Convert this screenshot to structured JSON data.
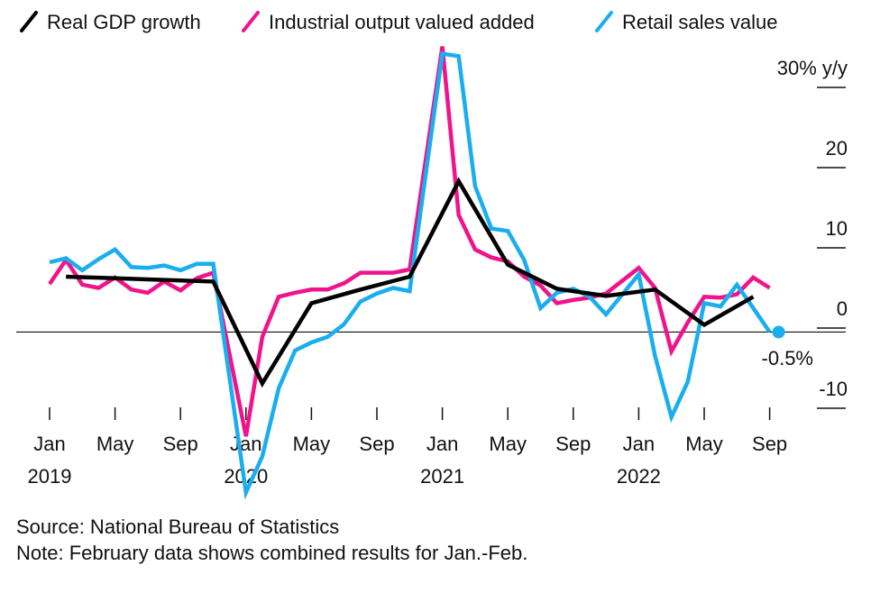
{
  "chart_data": {
    "type": "line",
    "x_axis": {
      "ticks": [
        {
          "label": "Jan",
          "year": "2019",
          "x": "2019-01"
        },
        {
          "label": "May",
          "x": "2019-05"
        },
        {
          "label": "Sep",
          "x": "2019-09"
        },
        {
          "label": "Jan",
          "year": "2020",
          "x": "2020-01"
        },
        {
          "label": "May",
          "x": "2020-05"
        },
        {
          "label": "Sep",
          "x": "2020-09"
        },
        {
          "label": "Jan",
          "year": "2021",
          "x": "2021-01"
        },
        {
          "label": "May",
          "x": "2021-05"
        },
        {
          "label": "Sep",
          "x": "2021-09"
        },
        {
          "label": "Jan",
          "year": "2022",
          "x": "2022-01"
        },
        {
          "label": "May",
          "x": "2022-05"
        },
        {
          "label": "Sep",
          "x": "2022-09"
        }
      ]
    },
    "y_axis": {
      "ylim": [
        -10,
        30
      ],
      "ticks": [
        {
          "value": 30,
          "label": "30% y/y"
        },
        {
          "value": 20,
          "label": "20"
        },
        {
          "value": 10,
          "label": "10"
        },
        {
          "value": 0,
          "label": "0"
        },
        {
          "value": -10,
          "label": "-10"
        }
      ]
    },
    "baseline": -0.5,
    "series": [
      {
        "name": "Real GDP growth",
        "color": "#000000",
        "points": [
          {
            "x": "2019-02",
            "y": 6.4
          },
          {
            "x": "2019-05",
            "y": 6.2
          },
          {
            "x": "2019-08",
            "y": 6.0
          },
          {
            "x": "2019-11",
            "y": 5.8
          },
          {
            "x": "2020-02",
            "y": -6.9
          },
          {
            "x": "2020-05",
            "y": 3.1
          },
          {
            "x": "2020-08",
            "y": 4.8
          },
          {
            "x": "2020-11",
            "y": 6.4
          },
          {
            "x": "2021-02",
            "y": 18.3
          },
          {
            "x": "2021-05",
            "y": 7.9
          },
          {
            "x": "2021-08",
            "y": 4.9
          },
          {
            "x": "2021-11",
            "y": 4.0
          },
          {
            "x": "2022-02",
            "y": 4.8
          },
          {
            "x": "2022-05",
            "y": 0.4
          },
          {
            "x": "2022-08",
            "y": 3.9
          }
        ]
      },
      {
        "name": "Industrial output valued added",
        "color": "#f0138c",
        "points": [
          {
            "x": "2019-01",
            "y": 5.5
          },
          {
            "x": "2019-02",
            "y": 8.5
          },
          {
            "x": "2019-03",
            "y": 5.4
          },
          {
            "x": "2019-04",
            "y": 5.0
          },
          {
            "x": "2019-05",
            "y": 6.3
          },
          {
            "x": "2019-06",
            "y": 4.8
          },
          {
            "x": "2019-07",
            "y": 4.4
          },
          {
            "x": "2019-08",
            "y": 5.8
          },
          {
            "x": "2019-09",
            "y": 4.7
          },
          {
            "x": "2019-10",
            "y": 6.2
          },
          {
            "x": "2019-11",
            "y": 6.9
          },
          {
            "x": "2020-01",
            "y": -13.5
          },
          {
            "x": "2020-02",
            "y": -1.1
          },
          {
            "x": "2020-03",
            "y": 3.9
          },
          {
            "x": "2020-04",
            "y": 4.4
          },
          {
            "x": "2020-05",
            "y": 4.8
          },
          {
            "x": "2020-06",
            "y": 4.8
          },
          {
            "x": "2020-07",
            "y": 5.6
          },
          {
            "x": "2020-08",
            "y": 6.9
          },
          {
            "x": "2020-09",
            "y": 6.9
          },
          {
            "x": "2020-10",
            "y": 6.9
          },
          {
            "x": "2020-11",
            "y": 7.3
          },
          {
            "x": "2021-01",
            "y": 35.1
          },
          {
            "x": "2021-02",
            "y": 14.1
          },
          {
            "x": "2021-03",
            "y": 9.8
          },
          {
            "x": "2021-04",
            "y": 8.8
          },
          {
            "x": "2021-05",
            "y": 8.3
          },
          {
            "x": "2021-06",
            "y": 6.4
          },
          {
            "x": "2021-07",
            "y": 5.3
          },
          {
            "x": "2021-08",
            "y": 3.1
          },
          {
            "x": "2021-09",
            "y": 3.5
          },
          {
            "x": "2021-10",
            "y": 3.8
          },
          {
            "x": "2021-11",
            "y": 4.3
          },
          {
            "x": "2022-01",
            "y": 7.5
          },
          {
            "x": "2022-02",
            "y": 5.0
          },
          {
            "x": "2022-03",
            "y": -2.9
          },
          {
            "x": "2022-04",
            "y": 0.7
          },
          {
            "x": "2022-05",
            "y": 3.9
          },
          {
            "x": "2022-06",
            "y": 3.8
          },
          {
            "x": "2022-07",
            "y": 4.2
          },
          {
            "x": "2022-08",
            "y": 6.3
          },
          {
            "x": "2022-09",
            "y": 5.0
          }
        ]
      },
      {
        "name": "Retail sales value",
        "color": "#1aaef0",
        "points": [
          {
            "x": "2019-01",
            "y": 8.2
          },
          {
            "x": "2019-02",
            "y": 8.7
          },
          {
            "x": "2019-03",
            "y": 7.2
          },
          {
            "x": "2019-04",
            "y": 8.6
          },
          {
            "x": "2019-05",
            "y": 9.8
          },
          {
            "x": "2019-06",
            "y": 7.6
          },
          {
            "x": "2019-07",
            "y": 7.5
          },
          {
            "x": "2019-08",
            "y": 7.8
          },
          {
            "x": "2019-09",
            "y": 7.2
          },
          {
            "x": "2019-10",
            "y": 8.0
          },
          {
            "x": "2019-11",
            "y": 8.0
          },
          {
            "x": "2020-01",
            "y": -20.5
          },
          {
            "x": "2020-02",
            "y": -16.0
          },
          {
            "x": "2020-03",
            "y": -7.5
          },
          {
            "x": "2020-04",
            "y": -2.8
          },
          {
            "x": "2020-05",
            "y": -1.8
          },
          {
            "x": "2020-06",
            "y": -1.1
          },
          {
            "x": "2020-07",
            "y": 0.5
          },
          {
            "x": "2020-08",
            "y": 3.3
          },
          {
            "x": "2020-09",
            "y": 4.3
          },
          {
            "x": "2020-10",
            "y": 5.0
          },
          {
            "x": "2020-11",
            "y": 4.6
          },
          {
            "x": "2021-01",
            "y": 34.2
          },
          {
            "x": "2021-02",
            "y": 33.9
          },
          {
            "x": "2021-03",
            "y": 17.7
          },
          {
            "x": "2021-04",
            "y": 12.4
          },
          {
            "x": "2021-05",
            "y": 12.1
          },
          {
            "x": "2021-06",
            "y": 8.5
          },
          {
            "x": "2021-07",
            "y": 2.5
          },
          {
            "x": "2021-08",
            "y": 4.4
          },
          {
            "x": "2021-09",
            "y": 4.9
          },
          {
            "x": "2021-10",
            "y": 3.9
          },
          {
            "x": "2021-11",
            "y": 1.7
          },
          {
            "x": "2022-01",
            "y": 6.7
          },
          {
            "x": "2022-02",
            "y": -3.5
          },
          {
            "x": "2022-03",
            "y": -11.1
          },
          {
            "x": "2022-04",
            "y": -6.7
          },
          {
            "x": "2022-05",
            "y": 3.1
          },
          {
            "x": "2022-06",
            "y": 2.7
          },
          {
            "x": "2022-07",
            "y": 5.4
          },
          {
            "x": "2022-08",
            "y": 2.5
          },
          {
            "x": "2022-09",
            "y": -0.5
          }
        ]
      }
    ],
    "end_marker": {
      "x": "2022-10",
      "y": -0.5,
      "label": "-0.5%",
      "color": "#1aaef0"
    },
    "legend": "top-left",
    "grid": false
  },
  "footer": {
    "source": "Source: National Bureau of Statistics",
    "note": "Note: February data shows combined results for Jan.-Feb."
  }
}
